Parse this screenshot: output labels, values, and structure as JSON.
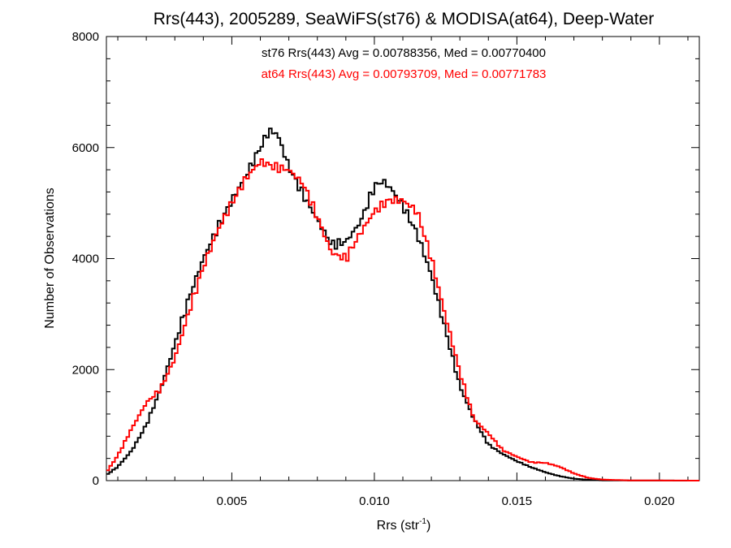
{
  "chart_data": {
    "type": "line",
    "title": "Rrs(443), 2005289, SeaWiFS(st76) & MODISA(at64), Deep-Water",
    "xlabel_main": "Rrs (str",
    "xlabel_sup": "-1",
    "xlabel_close": ")",
    "ylabel": "Number of Observations",
    "xlim": [
      0.0006,
      0.0214
    ],
    "ylim": [
      0,
      8000
    ],
    "x_ticks": [
      0.005,
      0.01,
      0.015,
      0.02
    ],
    "x_tick_labels": [
      "0.005",
      "0.010",
      "0.015",
      "0.020"
    ],
    "y_ticks": [
      0,
      2000,
      4000,
      6000,
      8000
    ],
    "y_tick_labels": [
      "0",
      "2000",
      "4000",
      "6000",
      "8000"
    ],
    "grid": false,
    "legend_position": "top-center",
    "series": [
      {
        "name": "st76 Rrs(443) Avg = 0.00788356, Med = 0.00770400",
        "color": "#000000",
        "points": [
          [
            0.0006,
            100
          ],
          [
            0.001,
            250
          ],
          [
            0.0015,
            550
          ],
          [
            0.002,
            1000
          ],
          [
            0.0025,
            1650
          ],
          [
            0.003,
            2450
          ],
          [
            0.0035,
            3300
          ],
          [
            0.004,
            4000
          ],
          [
            0.0045,
            4550
          ],
          [
            0.005,
            5050
          ],
          [
            0.0055,
            5500
          ],
          [
            0.006,
            6000
          ],
          [
            0.0063,
            6300
          ],
          [
            0.0066,
            6250
          ],
          [
            0.007,
            5650
          ],
          [
            0.0075,
            5150
          ],
          [
            0.008,
            4700
          ],
          [
            0.0085,
            4250
          ],
          [
            0.009,
            4300
          ],
          [
            0.0095,
            4650
          ],
          [
            0.01,
            5300
          ],
          [
            0.0103,
            5400
          ],
          [
            0.0106,
            5250
          ],
          [
            0.011,
            4950
          ],
          [
            0.0115,
            4450
          ],
          [
            0.012,
            3700
          ],
          [
            0.0125,
            2700
          ],
          [
            0.013,
            1700
          ],
          [
            0.0135,
            1100
          ],
          [
            0.014,
            650
          ],
          [
            0.0145,
            480
          ],
          [
            0.015,
            350
          ],
          [
            0.0155,
            240
          ],
          [
            0.016,
            150
          ],
          [
            0.0165,
            80
          ],
          [
            0.017,
            35
          ],
          [
            0.0175,
            15
          ],
          [
            0.018,
            5
          ],
          [
            0.019,
            2
          ],
          [
            0.0214,
            0
          ]
        ]
      },
      {
        "name": "at64 Rrs(443) Avg = 0.00793709, Med = 0.00771783",
        "color": "#ff0000",
        "points": [
          [
            0.0006,
            150
          ],
          [
            0.001,
            450
          ],
          [
            0.0015,
            950
          ],
          [
            0.002,
            1400
          ],
          [
            0.0025,
            1650
          ],
          [
            0.003,
            2200
          ],
          [
            0.0035,
            3050
          ],
          [
            0.004,
            3850
          ],
          [
            0.0045,
            4500
          ],
          [
            0.005,
            5000
          ],
          [
            0.0055,
            5450
          ],
          [
            0.006,
            5750
          ],
          [
            0.0065,
            5650
          ],
          [
            0.007,
            5600
          ],
          [
            0.0075,
            5350
          ],
          [
            0.008,
            4750
          ],
          [
            0.0085,
            4100
          ],
          [
            0.009,
            4000
          ],
          [
            0.0095,
            4450
          ],
          [
            0.01,
            4850
          ],
          [
            0.0105,
            5050
          ],
          [
            0.011,
            5050
          ],
          [
            0.0115,
            4850
          ],
          [
            0.012,
            4000
          ],
          [
            0.0125,
            2950
          ],
          [
            0.013,
            1950
          ],
          [
            0.0135,
            1100
          ],
          [
            0.014,
            850
          ],
          [
            0.0145,
            550
          ],
          [
            0.015,
            430
          ],
          [
            0.0155,
            330
          ],
          [
            0.016,
            320
          ],
          [
            0.0165,
            250
          ],
          [
            0.017,
            130
          ],
          [
            0.0175,
            50
          ],
          [
            0.018,
            18
          ],
          [
            0.019,
            4
          ],
          [
            0.0214,
            0
          ]
        ]
      }
    ]
  }
}
